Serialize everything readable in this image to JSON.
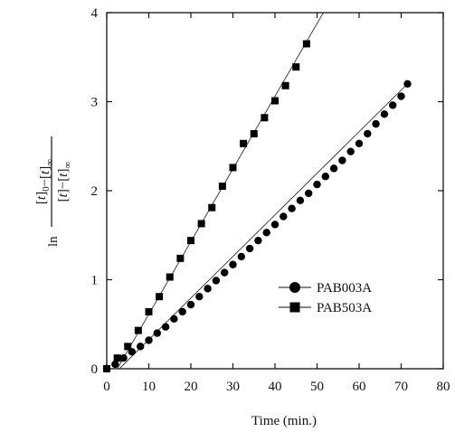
{
  "chart_data": {
    "type": "scatter",
    "xlabel": "Time (min.)",
    "ylabel": {
      "prefix": "ln",
      "numerator": "[t]0−[t]∞",
      "denominator": "[t]−[t]∞",
      "num_parts": [
        {
          "t": "[",
          "italic": false
        },
        {
          "t": "t",
          "italic": true
        },
        {
          "t": "]",
          "italic": false
        },
        {
          "t": "0",
          "italic": false,
          "sub": true
        },
        {
          "t": "−[",
          "italic": false
        },
        {
          "t": "t",
          "italic": true
        },
        {
          "t": "]",
          "italic": false
        },
        {
          "t": "∞",
          "italic": false,
          "sub": true
        }
      ],
      "den_parts": [
        {
          "t": "[",
          "italic": false
        },
        {
          "t": "t",
          "italic": true
        },
        {
          "t": "]−[",
          "italic": false
        },
        {
          "t": "t",
          "italic": true
        },
        {
          "t": "]",
          "italic": false
        },
        {
          "t": "∞",
          "italic": false,
          "sub": true
        }
      ]
    },
    "xlim": [
      0,
      80
    ],
    "ylim": [
      0,
      4
    ],
    "xticks": [
      "0",
      "10",
      "20",
      "30",
      "40",
      "50",
      "60",
      "70",
      "80"
    ],
    "yticks": [
      "0",
      "1",
      "2",
      "3",
      "4"
    ],
    "grid": false,
    "legend_position": "lower-right",
    "series": [
      {
        "name": "PAB003A",
        "marker": "circle",
        "color": "#000000",
        "x": [
          0,
          2,
          4,
          6,
          8,
          10,
          12,
          14,
          16,
          18,
          20,
          22,
          24,
          26,
          28,
          30,
          32,
          34,
          36,
          38,
          40,
          42,
          44,
          46,
          48,
          50,
          52,
          54,
          56,
          58,
          60,
          62,
          64,
          66,
          68,
          70,
          71.5
        ],
        "y": [
          0,
          0.05,
          0.12,
          0.19,
          0.25,
          0.32,
          0.4,
          0.47,
          0.56,
          0.64,
          0.72,
          0.81,
          0.9,
          0.99,
          1.08,
          1.17,
          1.26,
          1.35,
          1.44,
          1.53,
          1.62,
          1.71,
          1.8,
          1.89,
          1.97,
          2.07,
          2.16,
          2.25,
          2.34,
          2.44,
          2.53,
          2.64,
          2.75,
          2.86,
          2.96,
          3.06,
          3.2
        ],
        "fit": {
          "x": [
            3,
            71.5
          ],
          "y": [
            0,
            3.2
          ]
        }
      },
      {
        "name": "PAB503A",
        "marker": "square",
        "color": "#000000",
        "x": [
          0,
          2.5,
          5,
          7.5,
          10,
          12.5,
          15,
          17.5,
          20,
          22.5,
          25,
          27.5,
          30,
          32.5,
          35,
          37.5,
          40,
          42.5,
          45,
          47.5
        ],
        "y": [
          0,
          0.12,
          0.25,
          0.43,
          0.64,
          0.81,
          1.03,
          1.24,
          1.44,
          1.63,
          1.81,
          2.05,
          2.26,
          2.53,
          2.64,
          2.82,
          3.01,
          3.18,
          3.39,
          3.65
        ],
        "fit": {
          "x": [
            2.5,
            51.5
          ],
          "y": [
            0,
            4.0
          ]
        }
      }
    ]
  }
}
